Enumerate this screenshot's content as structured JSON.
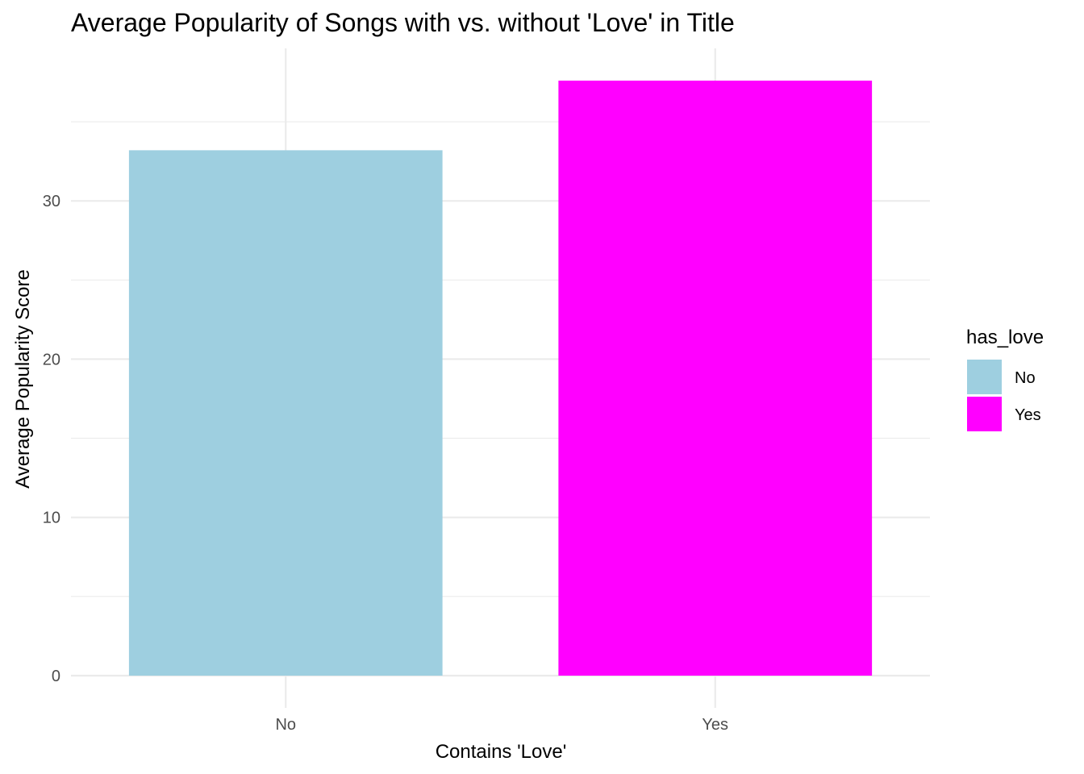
{
  "chart_data": {
    "type": "bar",
    "title": "Average Popularity of Songs with vs. without 'Love' in Title",
    "xlabel": "Contains 'Love'",
    "ylabel": "Average Popularity Score",
    "categories": [
      "No",
      "Yes"
    ],
    "values": [
      33.2,
      37.6
    ],
    "colors": [
      "#9ecfe0",
      "#ff00ff"
    ],
    "ylim": [
      0,
      37.6
    ],
    "yticks": [
      0,
      10,
      20,
      30
    ],
    "y_minor_ticks": [
      5,
      15,
      25,
      35
    ],
    "grid": true,
    "legend": {
      "title": "has_love",
      "position": "right",
      "items": [
        {
          "label": "No",
          "color": "#9ecfe0"
        },
        {
          "label": "Yes",
          "color": "#ff00ff"
        }
      ]
    }
  }
}
